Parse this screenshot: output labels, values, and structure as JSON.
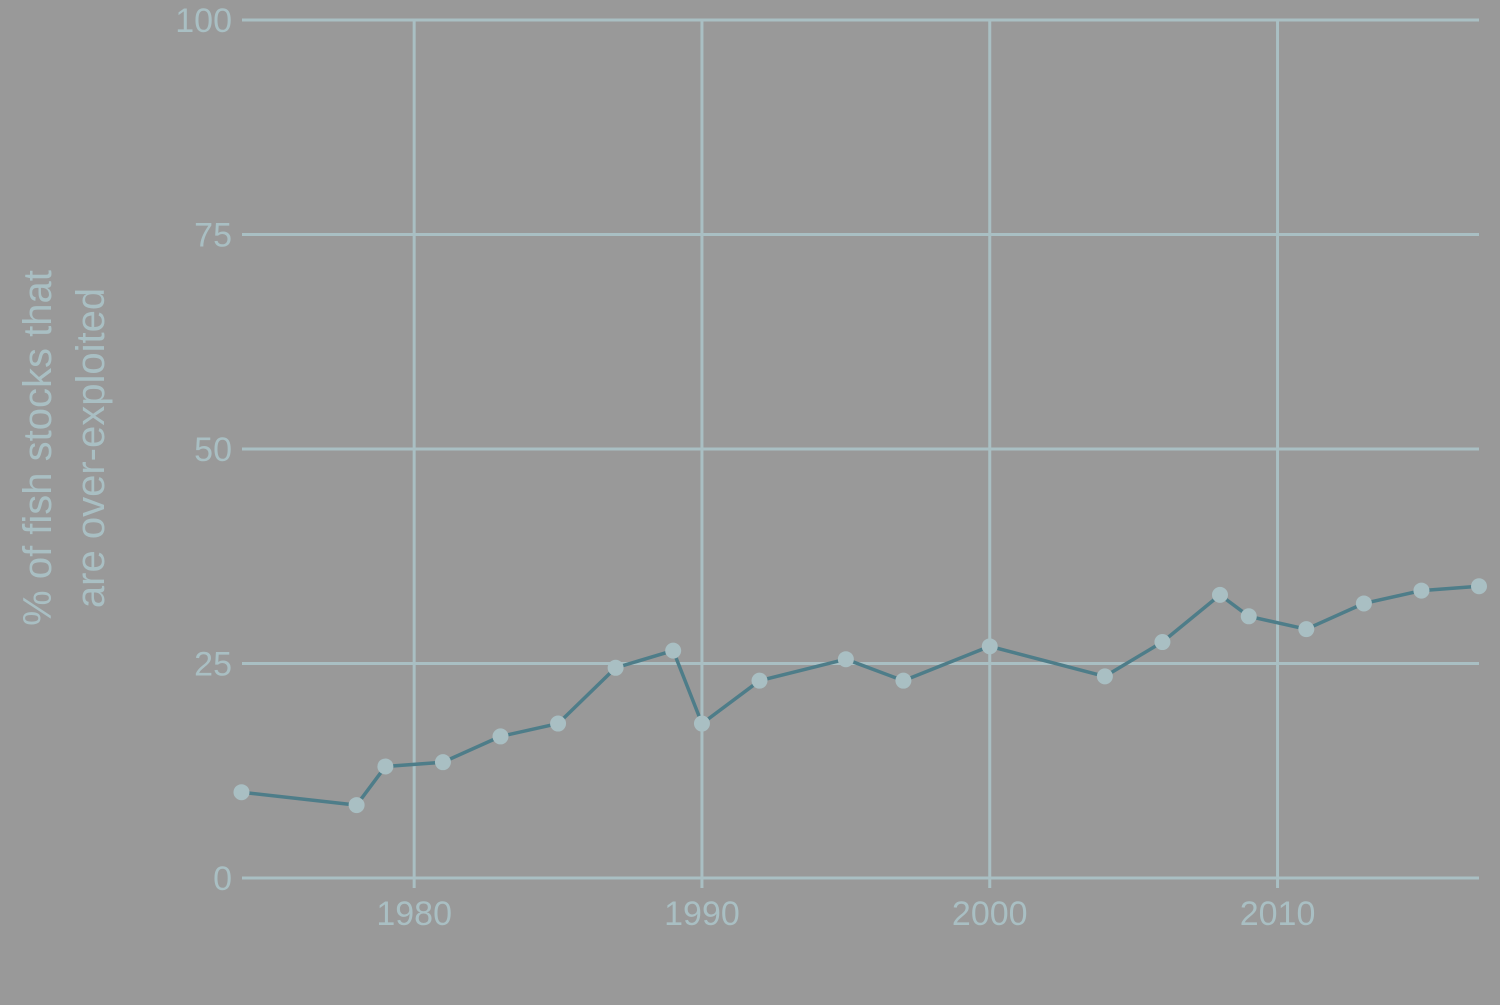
{
  "colors": {
    "background": "#999999",
    "grid": "#a9bfc3",
    "text": "#a9bfc3",
    "line": "#4e7d89",
    "marker": "#a9bfc3"
  },
  "chart_data": {
    "type": "line",
    "title": "",
    "xlabel": "",
    "ylabel_lines": [
      "% of fish stocks that",
      "are over-exploited"
    ],
    "xlim": [
      1974.4,
      2017
    ],
    "ylim": [
      0,
      100
    ],
    "xticks": [
      1980,
      1990,
      2000,
      2010
    ],
    "yticks": [
      0,
      25,
      50,
      75,
      100
    ],
    "grid": true,
    "legend": "none",
    "series": [
      {
        "x": [
          1974,
          1978,
          1979,
          1981,
          1983,
          1985,
          1987,
          1989,
          1990,
          1992,
          1995,
          1997,
          2000,
          2004,
          2006,
          2008,
          2009,
          2011,
          2013,
          2015,
          2017
        ],
        "y": [
          10.0,
          8.5,
          13.0,
          13.5,
          16.5,
          18.0,
          24.5,
          26.5,
          18.0,
          23.0,
          25.5,
          23.0,
          27.0,
          23.5,
          27.5,
          33.0,
          30.5,
          29.0,
          32.0,
          33.5,
          34.0
        ]
      }
    ]
  }
}
